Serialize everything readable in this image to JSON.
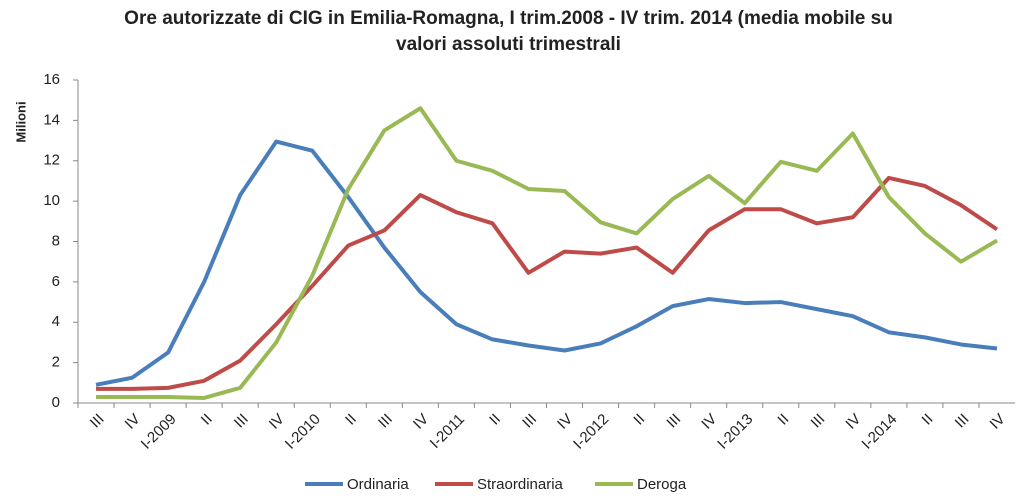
{
  "chart_data": {
    "type": "line",
    "title": "Ore autorizzate di CIG in Emilia-Romagna, I trim.2008 - IV trim. 2014 (media mobile su valori assoluti trimestrali",
    "y_label": "Milioni",
    "categories": [
      "III",
      "IV",
      "I-2009",
      "II",
      "III",
      "IV",
      "I-2010",
      "II",
      "III",
      "IV",
      "I-2011",
      "II",
      "III",
      "IV",
      "I-2012",
      "II",
      "III",
      "IV",
      "I-2013",
      "II",
      "III",
      "IV",
      "I-2014",
      "II",
      "III",
      "IV"
    ],
    "series": [
      {
        "name": "Ordinaria",
        "color": "#4a7ebb",
        "values": [
          0.9,
          1.25,
          2.5,
          6.0,
          10.3,
          12.95,
          12.5,
          10.2,
          7.7,
          5.5,
          3.9,
          3.15,
          2.85,
          2.6,
          2.95,
          3.8,
          4.8,
          5.15,
          4.95,
          5.0,
          4.65,
          4.3,
          3.5,
          3.25,
          2.9,
          2.7
        ]
      },
      {
        "name": "Straordinaria",
        "color": "#be4b48",
        "values": [
          0.7,
          0.7,
          0.75,
          1.1,
          2.1,
          3.9,
          5.8,
          7.8,
          8.55,
          10.3,
          9.45,
          8.9,
          6.45,
          7.5,
          7.4,
          7.7,
          6.45,
          8.55,
          9.6,
          9.6,
          8.9,
          9.2,
          11.15,
          10.75,
          9.8,
          8.6
        ]
      },
      {
        "name": "Deroga",
        "color": "#98b954",
        "values": [
          0.3,
          0.3,
          0.3,
          0.25,
          0.75,
          3.0,
          6.3,
          10.6,
          13.5,
          14.6,
          12.0,
          11.5,
          10.6,
          10.5,
          8.95,
          8.4,
          10.1,
          11.25,
          9.9,
          11.95,
          11.5,
          13.35,
          10.2,
          8.4,
          7.0,
          8.05
        ]
      }
    ],
    "ylim": [
      0,
      16
    ],
    "yticks": [
      0,
      2,
      4,
      6,
      8,
      10,
      12,
      14,
      16
    ],
    "grid": false,
    "legend": "bottom"
  }
}
